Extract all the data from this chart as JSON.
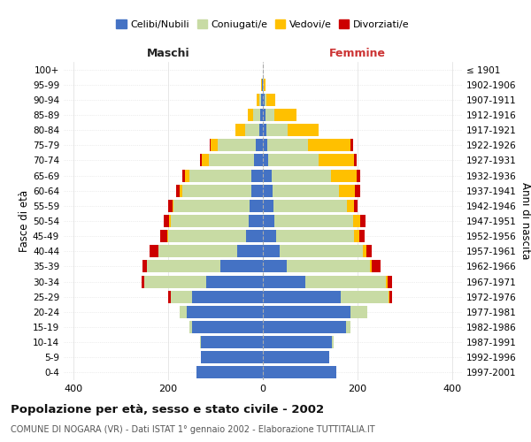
{
  "age_groups": [
    "0-4",
    "5-9",
    "10-14",
    "15-19",
    "20-24",
    "25-29",
    "30-34",
    "35-39",
    "40-44",
    "45-49",
    "50-54",
    "55-59",
    "60-64",
    "65-69",
    "70-74",
    "75-79",
    "80-84",
    "85-89",
    "90-94",
    "95-99",
    "100+"
  ],
  "birth_years": [
    "1997-2001",
    "1992-1996",
    "1987-1991",
    "1982-1986",
    "1977-1981",
    "1972-1976",
    "1967-1971",
    "1962-1966",
    "1957-1961",
    "1952-1956",
    "1947-1951",
    "1942-1946",
    "1937-1941",
    "1932-1936",
    "1927-1931",
    "1922-1926",
    "1917-1921",
    "1912-1916",
    "1907-1911",
    "1902-1906",
    "≤ 1901"
  ],
  "maschi": {
    "celibi": [
      140,
      130,
      130,
      150,
      160,
      150,
      120,
      90,
      55,
      35,
      30,
      28,
      25,
      25,
      18,
      15,
      8,
      5,
      3,
      1,
      0
    ],
    "coniugati": [
      0,
      0,
      2,
      5,
      15,
      45,
      130,
      155,
      165,
      165,
      165,
      160,
      145,
      130,
      95,
      80,
      30,
      15,
      5,
      1,
      0
    ],
    "vedovi": [
      0,
      0,
      0,
      0,
      0,
      0,
      0,
      0,
      1,
      2,
      2,
      3,
      5,
      10,
      15,
      15,
      20,
      12,
      5,
      1,
      0
    ],
    "divorziati": [
      0,
      0,
      0,
      0,
      0,
      5,
      6,
      8,
      18,
      14,
      12,
      8,
      8,
      5,
      5,
      2,
      0,
      0,
      0,
      0,
      0
    ]
  },
  "femmine": {
    "nubili": [
      155,
      140,
      145,
      175,
      185,
      165,
      90,
      50,
      35,
      28,
      25,
      22,
      20,
      18,
      12,
      10,
      8,
      5,
      3,
      0,
      0
    ],
    "coniugate": [
      0,
      0,
      5,
      10,
      35,
      100,
      170,
      175,
      175,
      165,
      165,
      155,
      140,
      125,
      105,
      85,
      45,
      20,
      5,
      2,
      0
    ],
    "vedove": [
      0,
      0,
      0,
      0,
      0,
      2,
      3,
      5,
      8,
      10,
      15,
      15,
      35,
      55,
      75,
      90,
      65,
      45,
      18,
      4,
      0
    ],
    "divorziate": [
      0,
      0,
      0,
      0,
      0,
      5,
      10,
      18,
      12,
      12,
      12,
      8,
      10,
      8,
      5,
      5,
      0,
      0,
      0,
      0,
      0
    ]
  },
  "colors": {
    "celibi": "#4472c4",
    "coniugati": "#c8dba4",
    "vedovi": "#ffc000",
    "divorziati": "#cc0000"
  },
  "xlim": 420,
  "title": "Popolazione per età, sesso e stato civile - 2002",
  "subtitle": "COMUNE DI NOGARA (VR) - Dati ISTAT 1° gennaio 2002 - Elaborazione TUTTITALIA.IT",
  "xlabel_maschi": "Maschi",
  "xlabel_femmine": "Femmine",
  "ylabel_left": "Fasce di età",
  "ylabel_right": "Anni di nascita",
  "legend_labels": [
    "Celibi/Nubili",
    "Coniugati/e",
    "Vedovi/e",
    "Divorziati/e"
  ],
  "background_color": "#ffffff",
  "grid_color": "#cccccc"
}
